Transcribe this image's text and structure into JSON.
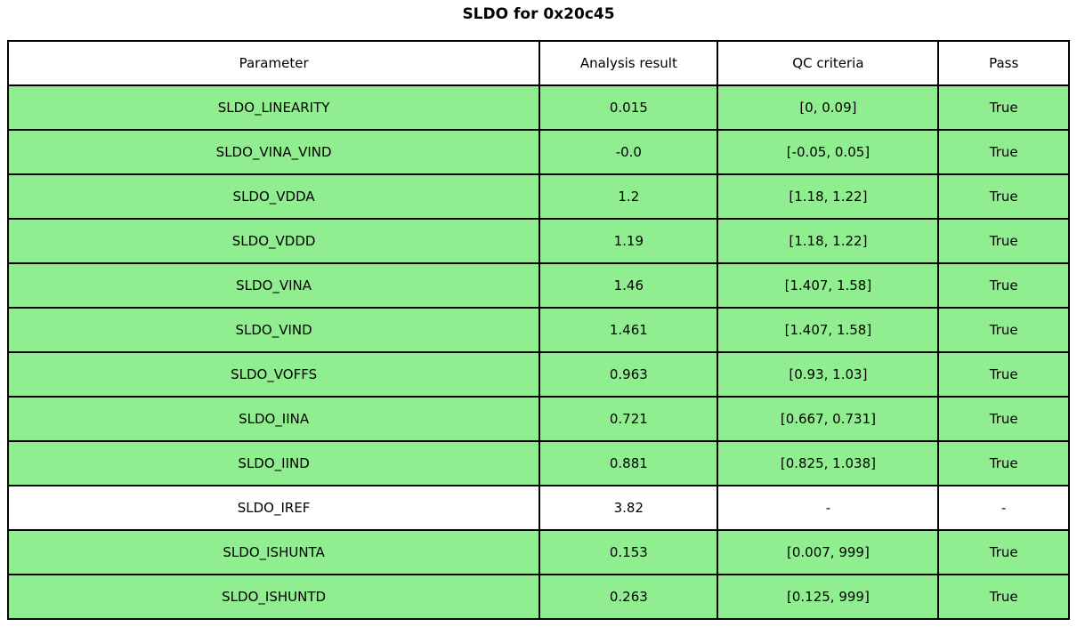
{
  "title": "SLDO for 0x20c45",
  "colors": {
    "pass_green": "#90EE90",
    "neutral": "#ffffff",
    "border": "#000000"
  },
  "chart_data": {
    "type": "table",
    "title": "SLDO for 0x20c45",
    "headers": [
      "Parameter",
      "Analysis result",
      "QC criteria",
      "Pass"
    ],
    "rows": [
      {
        "parameter": "SLDO_LINEARITY",
        "result": "0.015",
        "criteria": "[0, 0.09]",
        "pass": "True",
        "highlight": true
      },
      {
        "parameter": "SLDO_VINA_VIND",
        "result": "-0.0",
        "criteria": "[-0.05, 0.05]",
        "pass": "True",
        "highlight": true
      },
      {
        "parameter": "SLDO_VDDA",
        "result": "1.2",
        "criteria": "[1.18, 1.22]",
        "pass": "True",
        "highlight": true
      },
      {
        "parameter": "SLDO_VDDD",
        "result": "1.19",
        "criteria": "[1.18, 1.22]",
        "pass": "True",
        "highlight": true
      },
      {
        "parameter": "SLDO_VINA",
        "result": "1.46",
        "criteria": "[1.407, 1.58]",
        "pass": "True",
        "highlight": true
      },
      {
        "parameter": "SLDO_VIND",
        "result": "1.461",
        "criteria": "[1.407, 1.58]",
        "pass": "True",
        "highlight": true
      },
      {
        "parameter": "SLDO_VOFFS",
        "result": "0.963",
        "criteria": "[0.93, 1.03]",
        "pass": "True",
        "highlight": true
      },
      {
        "parameter": "SLDO_IINA",
        "result": "0.721",
        "criteria": "[0.667, 0.731]",
        "pass": "True",
        "highlight": true
      },
      {
        "parameter": "SLDO_IIND",
        "result": "0.881",
        "criteria": "[0.825, 1.038]",
        "pass": "True",
        "highlight": true
      },
      {
        "parameter": "SLDO_IREF",
        "result": "3.82",
        "criteria": "-",
        "pass": "-",
        "highlight": false
      },
      {
        "parameter": "SLDO_ISHUNTA",
        "result": "0.153",
        "criteria": "[0.007, 999]",
        "pass": "True",
        "highlight": true
      },
      {
        "parameter": "SLDO_ISHUNTD",
        "result": "0.263",
        "criteria": "[0.125, 999]",
        "pass": "True",
        "highlight": true
      }
    ]
  }
}
